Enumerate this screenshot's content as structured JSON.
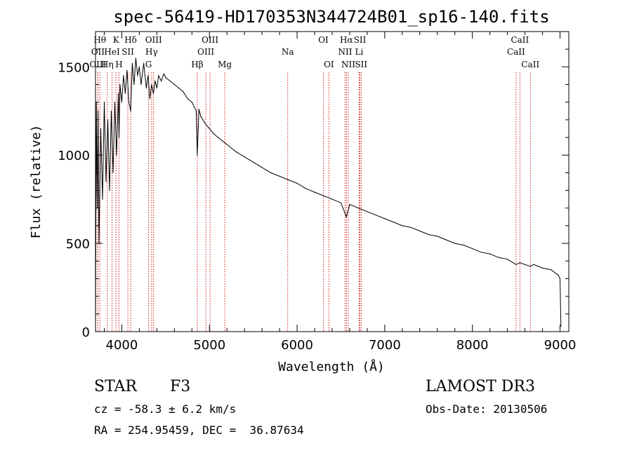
{
  "chart_data": {
    "type": "line",
    "title": "spec-56419-HD170353N344724B01_sp16-140.fits",
    "xlabel": "Wavelength (Å)",
    "ylabel": "Flux (relative)",
    "xlim": [
      3700,
      9100
    ],
    "ylim": [
      0,
      1700
    ],
    "xticks": [
      4000,
      5000,
      6000,
      7000,
      8000,
      9000
    ],
    "yticks": [
      0,
      500,
      1000,
      1500
    ],
    "grid": false,
    "series": [
      {
        "name": "flux",
        "x": [
          3700,
          3710,
          3720,
          3730,
          3740,
          3760,
          3780,
          3800,
          3820,
          3840,
          3860,
          3880,
          3900,
          3920,
          3940,
          3960,
          3968,
          3980,
          4000,
          4020,
          4040,
          4060,
          4080,
          4101,
          4120,
          4140,
          4160,
          4180,
          4200,
          4220,
          4250,
          4280,
          4300,
          4320,
          4340,
          4360,
          4380,
          4400,
          4420,
          4450,
          4480,
          4500,
          4550,
          4600,
          4650,
          4700,
          4750,
          4800,
          4850,
          4861,
          4880,
          4900,
          4950,
          5000,
          5050,
          5100,
          5150,
          5200,
          5300,
          5400,
          5500,
          5600,
          5700,
          5800,
          5900,
          6000,
          6100,
          6200,
          6300,
          6400,
          6500,
          6563,
          6600,
          6700,
          6800,
          6900,
          7000,
          7100,
          7200,
          7300,
          7400,
          7500,
          7600,
          7700,
          7800,
          7900,
          8000,
          8100,
          8200,
          8300,
          8400,
          8498,
          8542,
          8600,
          8662,
          8700,
          8800,
          8900,
          8950,
          8980,
          9000,
          9010
        ],
        "y": [
          0,
          1300,
          700,
          1250,
          500,
          1150,
          750,
          1300,
          850,
          1200,
          800,
          1250,
          900,
          1300,
          1000,
          1350,
          1100,
          1400,
          1300,
          1450,
          1350,
          1480,
          1300,
          1250,
          1520,
          1400,
          1550,
          1450,
          1500,
          1400,
          1520,
          1380,
          1450,
          1320,
          1400,
          1350,
          1420,
          1380,
          1450,
          1420,
          1460,
          1440,
          1420,
          1400,
          1380,
          1360,
          1320,
          1300,
          1250,
          1000,
          1260,
          1220,
          1180,
          1150,
          1120,
          1100,
          1080,
          1060,
          1020,
          990,
          960,
          930,
          900,
          880,
          860,
          840,
          810,
          790,
          770,
          750,
          730,
          650,
          720,
          700,
          680,
          660,
          640,
          620,
          600,
          590,
          570,
          550,
          540,
          520,
          500,
          490,
          470,
          450,
          440,
          420,
          410,
          380,
          390,
          380,
          370,
          380,
          360,
          350,
          330,
          320,
          300,
          30
        ]
      }
    ],
    "spectral_lines": [
      {
        "label": "Hθ",
        "x": 3750,
        "row": 0
      },
      {
        "label": "K",
        "x": 3934,
        "row": 0
      },
      {
        "label": "Hδ",
        "x": 4101,
        "row": 0
      },
      {
        "label": "OIII",
        "x": 4363,
        "row": 0
      },
      {
        "label": "OIII",
        "x": 5007,
        "row": 0
      },
      {
        "label": "OI",
        "x": 6300,
        "row": 0
      },
      {
        "label": "Hα",
        "x": 6563,
        "row": 0
      },
      {
        "label": "SII",
        "x": 6717,
        "row": 0
      },
      {
        "label": "CaII",
        "x": 8542,
        "row": 0
      },
      {
        "label": "OII",
        "x": 3727,
        "row": 1
      },
      {
        "label": "HeI",
        "x": 3889,
        "row": 1
      },
      {
        "label": "SII",
        "x": 4069,
        "row": 1
      },
      {
        "label": "Hγ",
        "x": 4340,
        "row": 1
      },
      {
        "label": "OIII",
        "x": 4959,
        "row": 1
      },
      {
        "label": "Na",
        "x": 5893,
        "row": 1
      },
      {
        "label": "NII",
        "x": 6548,
        "row": 1
      },
      {
        "label": "Li",
        "x": 6708,
        "row": 1
      },
      {
        "label": "CaII",
        "x": 8498,
        "row": 1
      },
      {
        "label": "OIII",
        "x": 3727,
        "row": 2
      },
      {
        "label": "Hη",
        "x": 3835,
        "row": 2
      },
      {
        "label": "H",
        "x": 3968,
        "row": 2
      },
      {
        "label": "G",
        "x": 4305,
        "row": 2
      },
      {
        "label": "Hβ",
        "x": 4861,
        "row": 2
      },
      {
        "label": "Mg",
        "x": 5175,
        "row": 2
      },
      {
        "label": "OI",
        "x": 6363,
        "row": 2
      },
      {
        "label": "NII",
        "x": 6584,
        "row": 2
      },
      {
        "label": "SII",
        "x": 6731,
        "row": 2
      },
      {
        "label": "CaII",
        "x": 8662,
        "row": 2
      }
    ]
  },
  "info": {
    "object_class": "STAR",
    "subclass": "F3",
    "survey": "LAMOST DR3",
    "cz": "cz = -58.3 ± 6.2 km/s",
    "obs_date": "Obs-Date: 20130506",
    "coords": "RA = 254.95459, DEC =  36.87634"
  }
}
